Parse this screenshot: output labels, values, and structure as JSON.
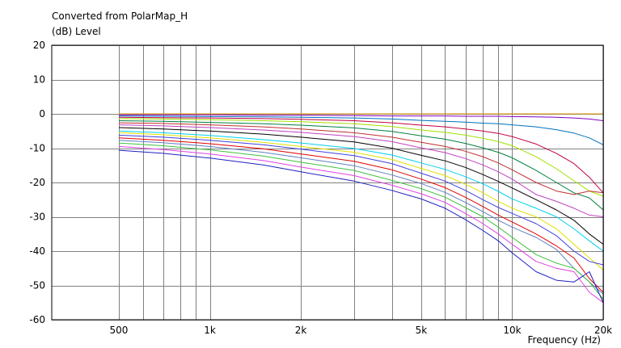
{
  "chart_data": {
    "type": "line",
    "title": "Converted from PolarMap_H",
    "ylabel": "(dB)  Level",
    "xlabel": "Frequency  (Hz)",
    "xscale": "log",
    "xlim": [
      300,
      20000
    ],
    "ylim": [
      -60,
      20
    ],
    "grid": true,
    "y_ticks": [
      20,
      10,
      0,
      -10,
      -20,
      -30,
      -40,
      -50,
      -60
    ],
    "x_tick_labels": [
      {
        "value": 500,
        "label": "500"
      },
      {
        "value": 1000,
        "label": "1k"
      },
      {
        "value": 2000,
        "label": "2k"
      },
      {
        "value": 5000,
        "label": "5k"
      },
      {
        "value": 10000,
        "label": "10k"
      },
      {
        "value": 20000,
        "label": "20k"
      }
    ],
    "x_gridlines": [
      500,
      600,
      700,
      800,
      900,
      1000,
      2000,
      3000,
      4000,
      5000,
      6000,
      7000,
      8000,
      9000,
      10000,
      20000
    ],
    "x": [
      500,
      700,
      1000,
      1500,
      2000,
      3000,
      4000,
      5000,
      6000,
      7000,
      8000,
      9000,
      10000,
      12000,
      14000,
      16000,
      18000,
      20000
    ],
    "series": [
      {
        "color": "#e39a00",
        "values": [
          0,
          0,
          0,
          0,
          0,
          0,
          0,
          0,
          0,
          0,
          0,
          0,
          0,
          0,
          0,
          0,
          0,
          0
        ]
      },
      {
        "color": "#8000c0",
        "values": [
          -0.3,
          -0.3,
          -0.3,
          -0.4,
          -0.4,
          -0.5,
          -0.6,
          -0.6,
          -0.6,
          -0.7,
          -0.7,
          -0.7,
          -0.8,
          -0.9,
          -1.0,
          -1.2,
          -1.5,
          -2.0
        ]
      },
      {
        "color": "#0070c0",
        "values": [
          -0.6,
          -0.7,
          -0.8,
          -0.9,
          -1.0,
          -1.2,
          -1.5,
          -1.9,
          -2.2,
          -2.4,
          -2.7,
          -2.9,
          -3.2,
          -3.8,
          -4.6,
          -5.6,
          -7.0,
          -9.0
        ]
      },
      {
        "color": "#c00040",
        "values": [
          -1.0,
          -1.1,
          -1.2,
          -1.4,
          -1.6,
          -2.0,
          -2.6,
          -3.3,
          -3.8,
          -4.4,
          -5.0,
          -5.7,
          -6.6,
          -8.8,
          -11.5,
          -14.5,
          -18.5,
          -23.0
        ]
      },
      {
        "color": "#a0e000",
        "values": [
          -1.4,
          -1.5,
          -1.7,
          -2.0,
          -2.3,
          -2.9,
          -3.7,
          -4.7,
          -5.4,
          -6.2,
          -7.1,
          -8.1,
          -9.3,
          -12.5,
          -16.0,
          -19.5,
          -22.5,
          -24.0
        ]
      },
      {
        "color": "#008040",
        "values": [
          -2.0,
          -2.2,
          -2.5,
          -2.9,
          -3.3,
          -4.1,
          -5.1,
          -6.4,
          -7.4,
          -8.6,
          -9.9,
          -11.2,
          -12.8,
          -16.5,
          -20.0,
          -23.0,
          -24.5,
          -28.0
        ]
      },
      {
        "color": "#c03030",
        "values": [
          -2.6,
          -2.8,
          -3.2,
          -3.8,
          -4.4,
          -5.5,
          -6.8,
          -8.3,
          -9.5,
          -10.9,
          -12.5,
          -14.3,
          -16.3,
          -20.0,
          -22.5,
          -23.5,
          -22.5,
          -23.0
        ]
      },
      {
        "color": "#c040c0",
        "values": [
          -3.2,
          -3.5,
          -4.0,
          -4.7,
          -5.4,
          -6.6,
          -8.1,
          -9.9,
          -11.3,
          -13.0,
          -14.9,
          -16.9,
          -19.0,
          -23.5,
          -25.5,
          -27.5,
          -29.5,
          -30.0
        ]
      },
      {
        "color": "#000000",
        "values": [
          -4.0,
          -4.4,
          -5.0,
          -5.9,
          -6.8,
          -8.2,
          -10.0,
          -12.1,
          -13.7,
          -15.6,
          -17.7,
          -19.7,
          -21.6,
          -25.0,
          -28.0,
          -31.0,
          -35.0,
          -38.0
        ]
      },
      {
        "color": "#00d0f0",
        "values": [
          -5.0,
          -5.5,
          -6.3,
          -7.5,
          -8.5,
          -10.1,
          -12.0,
          -14.3,
          -16.2,
          -18.3,
          -20.4,
          -22.6,
          -24.8,
          -27.5,
          -30.0,
          -33.5,
          -37.0,
          -40.0
        ]
      },
      {
        "color": "#e0e000",
        "values": [
          -5.5,
          -6.1,
          -7.0,
          -8.3,
          -9.5,
          -11.2,
          -13.3,
          -15.9,
          -18.0,
          -20.5,
          -23.0,
          -25.5,
          -27.5,
          -30.0,
          -33.5,
          -38.0,
          -42.0,
          -45.5
        ]
      },
      {
        "color": "#4040e0",
        "values": [
          -6.2,
          -6.8,
          -7.7,
          -9.0,
          -10.3,
          -12.2,
          -14.5,
          -17.3,
          -19.6,
          -22.3,
          -25.0,
          -27.3,
          -29.0,
          -32.0,
          -35.5,
          -40.0,
          -43.0,
          -44.0
        ]
      },
      {
        "color": "#e00000",
        "values": [
          -7.0,
          -7.7,
          -8.7,
          -10.2,
          -11.7,
          -13.8,
          -16.3,
          -19.0,
          -21.5,
          -24.3,
          -27.0,
          -29.5,
          -31.5,
          -35.0,
          -38.5,
          -42.0,
          -48.0,
          -52.0
        ]
      },
      {
        "color": "#6080c0",
        "values": [
          -7.7,
          -8.4,
          -9.5,
          -11.2,
          -12.8,
          -15.1,
          -17.8,
          -20.3,
          -22.9,
          -25.8,
          -28.5,
          -31.0,
          -33.0,
          -36.0,
          -39.5,
          -45.0,
          -49.0,
          -52.5
        ]
      },
      {
        "color": "#40c040",
        "values": [
          -8.5,
          -9.3,
          -10.5,
          -12.3,
          -14.1,
          -16.5,
          -19.4,
          -21.8,
          -24.3,
          -27.3,
          -30.0,
          -33.0,
          -36.0,
          -41.0,
          -43.5,
          -45.0,
          -49.0,
          -54.0
        ]
      },
      {
        "color": "#e040e0",
        "values": [
          -9.5,
          -10.4,
          -11.7,
          -13.6,
          -15.5,
          -18.0,
          -20.8,
          -23.3,
          -25.8,
          -29.0,
          -32.0,
          -35.0,
          -38.0,
          -43.0,
          -45.0,
          -46.0,
          -52.0,
          -55.0
        ]
      },
      {
        "color": "#2020c0",
        "values": [
          -10.6,
          -11.5,
          -12.9,
          -14.9,
          -16.9,
          -19.6,
          -22.3,
          -24.8,
          -27.5,
          -30.8,
          -34.0,
          -37.0,
          -40.5,
          -46.0,
          -48.5,
          -49.0,
          -46.0,
          -55.0
        ]
      }
    ]
  }
}
